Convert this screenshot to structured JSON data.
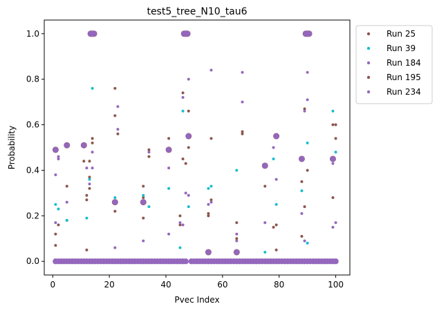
{
  "chart_data": {
    "type": "scatter",
    "title": "test5_tree_N10_tau6",
    "xlabel": "Pvec Index",
    "ylabel": "Probability",
    "xlim": [
      -3,
      105
    ],
    "ylim": [
      -0.06,
      1.06
    ],
    "xticks": [
      0,
      20,
      40,
      60,
      80,
      100
    ],
    "yticks": [
      0.0,
      0.2,
      0.4,
      0.6,
      0.8,
      1.0
    ],
    "grid": false,
    "legend_position": "outside-upper-right",
    "series": [
      {
        "name": "Run 25",
        "color": "#8c564b",
        "values": [
          [
            1,
            0.07
          ],
          [
            1,
            0.12
          ],
          [
            2,
            0.16
          ],
          [
            5,
            0.33
          ],
          [
            5,
            0.18
          ],
          [
            11,
            0.44
          ],
          [
            12,
            0.29
          ],
          [
            12,
            0.27
          ],
          [
            12,
            0.05
          ],
          [
            13,
            0.44
          ],
          [
            13,
            0.37
          ],
          [
            13,
            0.32
          ],
          [
            14,
            0.54
          ],
          [
            14,
            0.52
          ],
          [
            22,
            0.76
          ],
          [
            22,
            0.64
          ],
          [
            23,
            0.56
          ],
          [
            22,
            0.22
          ],
          [
            32,
            0.33
          ],
          [
            32,
            0.28
          ],
          [
            32,
            0.19
          ],
          [
            34,
            0.49
          ],
          [
            34,
            0.46
          ],
          [
            41,
            0.54
          ],
          [
            45,
            0.2
          ],
          [
            45,
            0.16
          ],
          [
            46,
            0.74
          ],
          [
            46,
            0.45
          ],
          [
            47,
            0.43
          ],
          [
            48,
            0.66
          ],
          [
            48,
            0.5
          ],
          [
            55,
            0.21
          ],
          [
            55,
            0.2
          ],
          [
            56,
            0.54
          ],
          [
            56,
            0.27
          ],
          [
            65,
            0.17
          ],
          [
            65,
            0.1
          ],
          [
            67,
            0.56
          ],
          [
            67,
            0.57
          ],
          [
            75,
            0.33
          ],
          [
            78,
            0.15
          ],
          [
            79,
            0.16
          ],
          [
            79,
            0.05
          ],
          [
            88,
            0.35
          ],
          [
            88,
            0.11
          ],
          [
            89,
            0.67
          ],
          [
            89,
            0.24
          ],
          [
            90,
            0.4
          ],
          [
            99,
            0.6
          ],
          [
            99,
            0.28
          ],
          [
            100,
            0.6
          ],
          [
            100,
            0.54
          ]
        ]
      },
      {
        "name": "Run 39",
        "color": "#17becf",
        "values": [
          [
            1,
            0.25
          ],
          [
            2,
            0.23
          ],
          [
            5,
            0.18
          ],
          [
            12,
            0.19
          ],
          [
            13,
            0.36
          ],
          [
            14,
            0.76
          ],
          [
            22,
            0.28
          ],
          [
            32,
            0.29
          ],
          [
            34,
            0.24
          ],
          [
            41,
            0.32
          ],
          [
            45,
            0.06
          ],
          [
            46,
            0.66
          ],
          [
            48,
            0.24
          ],
          [
            55,
            0.32
          ],
          [
            56,
            0.33
          ],
          [
            65,
            0.4
          ],
          [
            75,
            0.04
          ],
          [
            78,
            0.45
          ],
          [
            79,
            0.25
          ],
          [
            88,
            0.31
          ],
          [
            90,
            0.52
          ],
          [
            90,
            0.08
          ],
          [
            99,
            0.66
          ],
          [
            100,
            0.48
          ]
        ]
      },
      {
        "name": "Run 184",
        "color": "#9467bd",
        "values": [
          [
            1,
            0.38
          ],
          [
            1,
            0.17
          ],
          [
            2,
            0.46
          ],
          [
            2,
            0.45
          ],
          [
            5,
            0.26
          ],
          [
            12,
            0.41
          ],
          [
            13,
            0.34
          ],
          [
            14,
            0.41
          ],
          [
            14,
            0.48
          ],
          [
            22,
            0.06
          ],
          [
            23,
            0.68
          ],
          [
            23,
            0.58
          ],
          [
            32,
            0.09
          ],
          [
            34,
            0.48
          ],
          [
            41,
            0.41
          ],
          [
            41,
            0.12
          ],
          [
            45,
            0.17
          ],
          [
            46,
            0.72
          ],
          [
            46,
            0.16
          ],
          [
            47,
            0.3
          ],
          [
            48,
            0.8
          ],
          [
            48,
            0.29
          ],
          [
            55,
            0.25
          ],
          [
            56,
            0.84
          ],
          [
            56,
            0.26
          ],
          [
            65,
            0.12
          ],
          [
            65,
            0.09
          ],
          [
            67,
            0.83
          ],
          [
            67,
            0.7
          ],
          [
            75,
            0.17
          ],
          [
            78,
            0.5
          ],
          [
            79,
            0.36
          ],
          [
            88,
            0.21
          ],
          [
            89,
            0.09
          ],
          [
            89,
            0.66
          ],
          [
            90,
            0.83
          ],
          [
            90,
            0.71
          ],
          [
            99,
            0.43
          ],
          [
            99,
            0.15
          ],
          [
            100,
            0.17
          ]
        ]
      },
      {
        "name": "Run 195",
        "color": "#8c564b",
        "values": [
          [
            1,
            0.49
          ],
          [
            5,
            0.51
          ],
          [
            11,
            0.51
          ],
          [
            14,
            1.0
          ],
          [
            22,
            0.26
          ],
          [
            32,
            0.26
          ],
          [
            41,
            0.49
          ],
          [
            47,
            1.0
          ],
          [
            48,
            0.55
          ],
          [
            55,
            0.04
          ],
          [
            65,
            0.04
          ],
          [
            75,
            0.42
          ],
          [
            79,
            0.55
          ],
          [
            88,
            0.45
          ],
          [
            90,
            1.0
          ],
          [
            99,
            0.45
          ]
        ]
      },
      {
        "name": "Run 234",
        "color": "#9467bd",
        "values": [
          [
            1,
            0.49
          ],
          [
            5,
            0.51
          ],
          [
            11,
            0.51
          ],
          [
            14,
            1.0
          ],
          [
            22,
            0.26
          ],
          [
            32,
            0.26
          ],
          [
            41,
            0.49
          ],
          [
            47,
            1.0
          ],
          [
            48,
            0.55
          ],
          [
            55,
            0.04
          ],
          [
            65,
            0.04
          ],
          [
            75,
            0.42
          ],
          [
            79,
            0.55
          ],
          [
            88,
            0.45
          ],
          [
            90,
            1.0
          ],
          [
            99,
            0.45
          ]
        ]
      }
    ],
    "zero_band": {
      "y": 0.0,
      "x_ranges": [
        [
          1,
          14
        ],
        [
          15,
          47
        ],
        [
          49,
          100
        ]
      ]
    }
  }
}
